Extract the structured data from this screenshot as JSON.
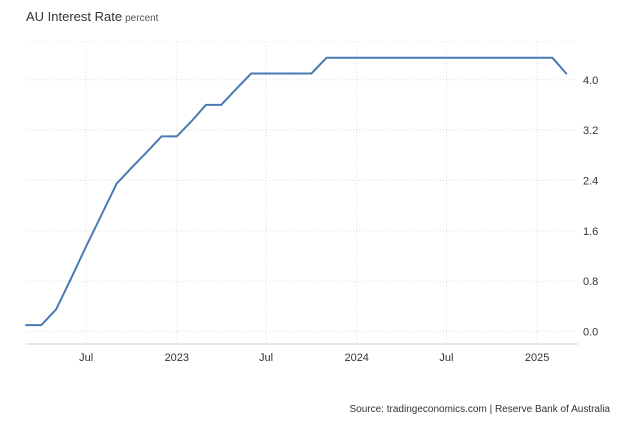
{
  "title": "AU Interest Rate",
  "subtitle": "percent",
  "source": "Source: tradingeconomics.com | Reserve Bank of Australia",
  "chart_data": {
    "type": "line",
    "color": "#4a7ab3",
    "grid": true,
    "ylim": [
      -0.2,
      4.6
    ],
    "y_ticks": [
      "0.0",
      "0.8",
      "1.6",
      "2.4",
      "3.2",
      "4.0"
    ],
    "x_ticks": [
      "Jul",
      "2023",
      "Jul",
      "2024",
      "Jul",
      "2025"
    ],
    "series": [
      {
        "x": [
          "2022-03-01",
          "2022-04-01",
          "2022-05-01",
          "2022-06-01",
          "2022-07-01",
          "2022-08-01",
          "2022-09-01",
          "2022-10-01",
          "2022-11-01",
          "2022-12-01",
          "2023-01-01",
          "2023-02-01",
          "2023-03-01",
          "2023-04-01",
          "2023-05-01",
          "2023-06-01",
          "2023-07-01",
          "2023-08-01",
          "2023-09-01",
          "2023-10-01",
          "2023-11-01",
          "2023-12-01",
          "2024-01-01",
          "2024-02-01",
          "2024-03-01",
          "2024-04-01",
          "2024-05-01",
          "2024-06-01",
          "2024-07-01",
          "2024-08-01",
          "2024-09-01",
          "2024-10-01",
          "2024-11-01",
          "2024-12-01",
          "2025-01-01",
          "2025-02-01",
          "2025-03-01"
        ],
        "values": [
          0.1,
          0.1,
          0.35,
          0.85,
          1.35,
          1.85,
          2.35,
          2.6,
          2.85,
          3.1,
          3.1,
          3.35,
          3.6,
          3.6,
          3.85,
          4.1,
          4.1,
          4.1,
          4.1,
          4.1,
          4.35,
          4.35,
          4.35,
          4.35,
          4.35,
          4.35,
          4.35,
          4.35,
          4.35,
          4.35,
          4.35,
          4.35,
          4.35,
          4.35,
          4.35,
          4.35,
          4.1
        ]
      }
    ]
  }
}
